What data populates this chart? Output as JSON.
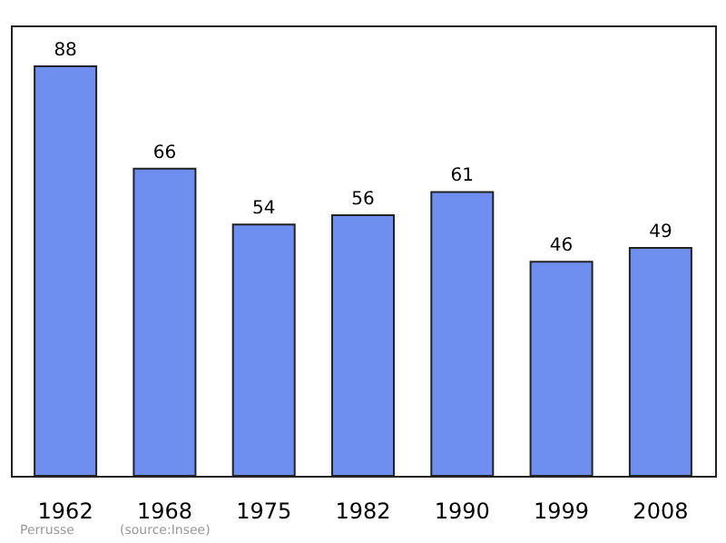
{
  "chart_data": {
    "type": "bar",
    "categories": [
      "1962",
      "1968",
      "1975",
      "1982",
      "1990",
      "1999",
      "2008"
    ],
    "values": [
      88,
      66,
      54,
      56,
      61,
      46,
      49
    ],
    "color": "#6e8ff0",
    "data_labels": true,
    "annotations": [
      "Perrusse",
      "(source:Insee)"
    ]
  }
}
